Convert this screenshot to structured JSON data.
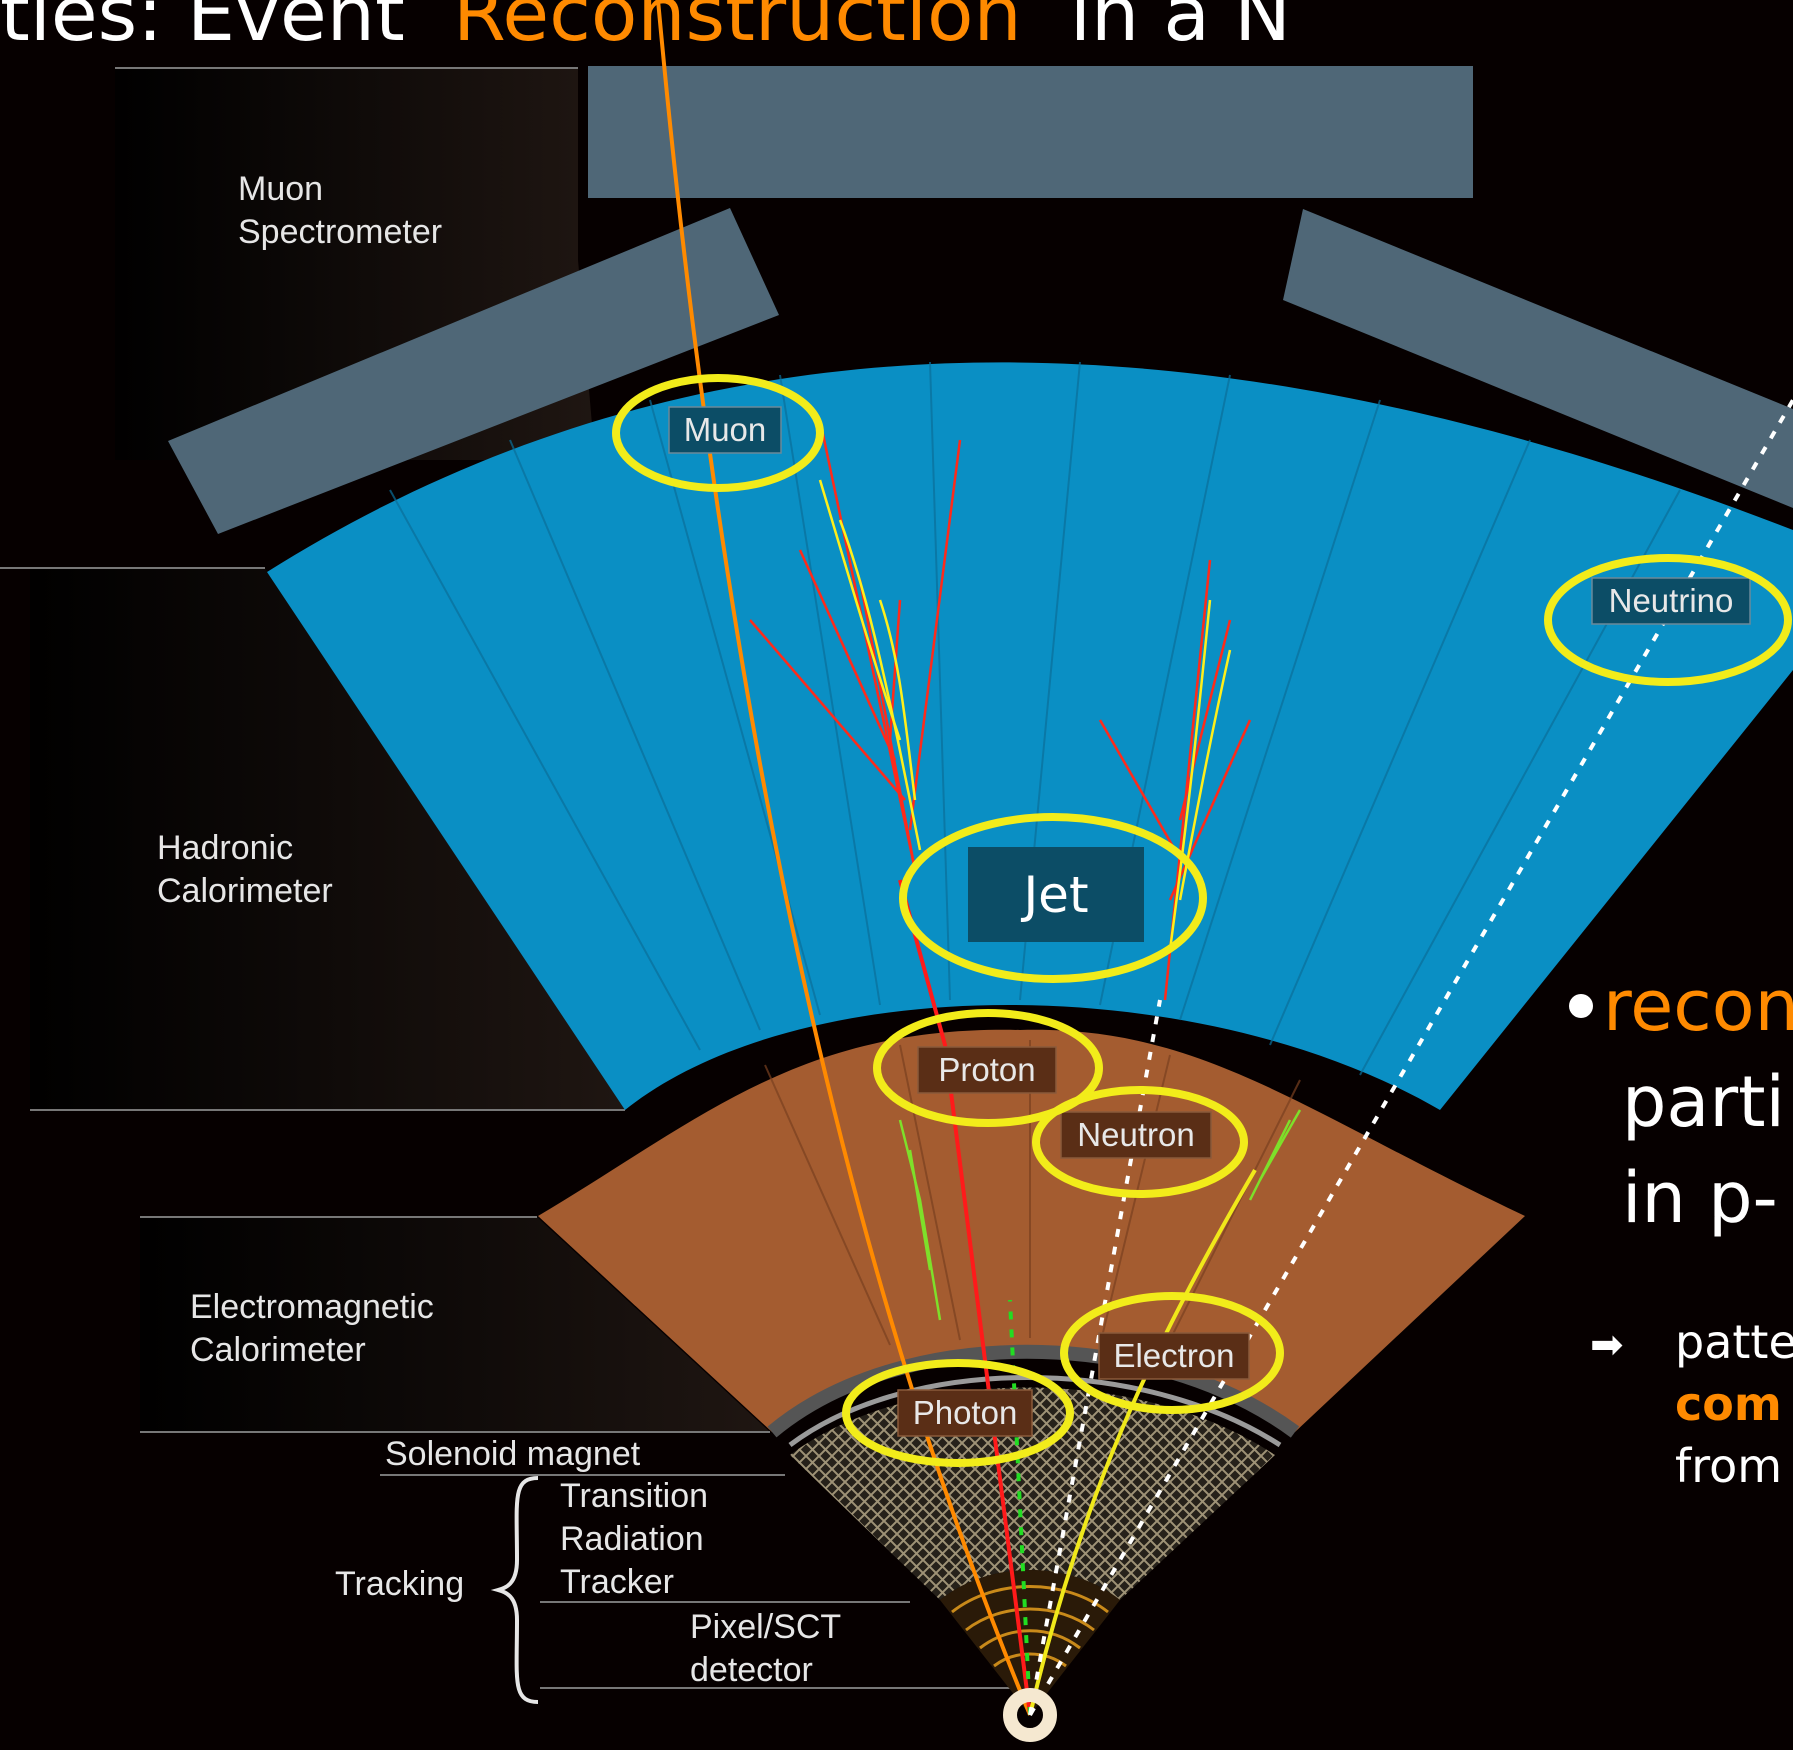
{
  "slide": {
    "title_prefix": "ties: Event",
    "title_highlight": "Reconstruction",
    "title_suffix": "in a N",
    "highlight_color": "#ff8a00"
  },
  "layers": {
    "muon": "Muon",
    "spectrometer": "Spectrometer",
    "hadronic": "Hadronic",
    "hadronic_cal": "Calorimeter",
    "em": "Electromagnetic",
    "em_cal": "Calorimeter",
    "solenoid": "Solenoid magnet",
    "trt_1": "Transition",
    "trt_2": "Radiation",
    "trt_3": "Tracker",
    "tracking": "Tracking",
    "pixel_1": "Pixel/SCT",
    "pixel_2": "detector"
  },
  "particles": {
    "muon": "Muon",
    "neutrino": "Neutrino",
    "jet": "Jet",
    "proton": "Proton",
    "neutron": "Neutron",
    "electron": "Electron",
    "photon": "Photon"
  },
  "bullets": {
    "b1": "recon",
    "b2": "parti",
    "b3": "in p-",
    "sub1": "patte",
    "sub2": "com",
    "sub3": "from"
  },
  "colors": {
    "hadronic": "#0a8fc4",
    "em": "#a45c30",
    "muon_chamber": "#4f6777",
    "highlight_ring": "#f2ec1a",
    "muon_track": "#ff8a00",
    "proton_track": "#ff1a1a",
    "electron_track": "#f0e81a",
    "photon_track": "#22dd22"
  }
}
